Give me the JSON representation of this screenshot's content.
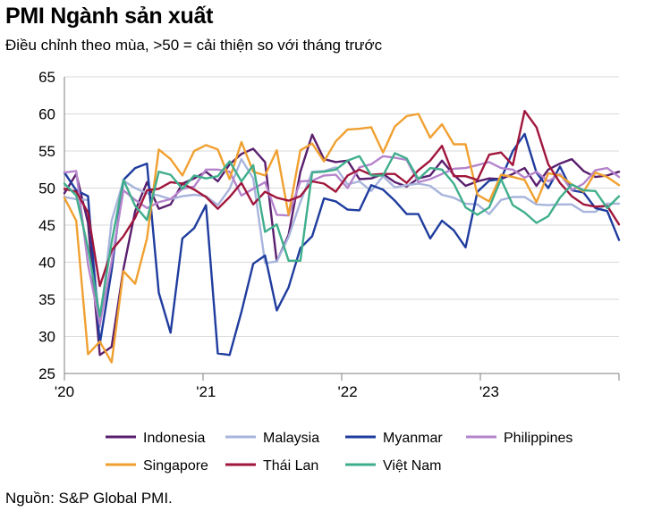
{
  "title": "PMI Ngành sản xuất",
  "subtitle": "Điều chỉnh theo mùa, >50 = cải thiện so với tháng trước",
  "source": "Nguồn: S&P Global PMI.",
  "chart_data": {
    "type": "line",
    "title": "PMI Ngành sản xuất",
    "subtitle": "Điều chỉnh theo mùa, >50 = cải thiện so với tháng trước",
    "xlabel": "",
    "ylabel": "",
    "x_start": "2020-01",
    "x_end": "2023-12",
    "frequency": "monthly",
    "x_tick_labels": [
      "'20",
      "'21",
      "'22",
      "'23"
    ],
    "ylim": [
      25,
      65
    ],
    "y_ticks": [
      25,
      30,
      35,
      40,
      45,
      50,
      55,
      60,
      65
    ],
    "grid": true,
    "legend_position": "bottom",
    "series": [
      {
        "name": "Indonesia",
        "color": "#5a1f6e",
        "values": [
          49.3,
          51.9,
          45.3,
          27.5,
          28.6,
          39.1,
          46.9,
          50.8,
          47.2,
          47.8,
          50.6,
          51.3,
          52.2,
          50.9,
          53.2,
          54.6,
          55.3,
          53.5,
          40.1,
          43.7,
          52.2,
          57.2,
          53.9,
          53.5,
          53.7,
          51.2,
          51.3,
          51.9,
          50.8,
          50.2,
          51.3,
          51.7,
          53.7,
          51.8,
          50.3,
          50.9,
          51.3,
          51.2,
          51.9,
          52.7,
          50.3,
          52.5,
          53.3,
          53.9,
          52.3,
          51.5,
          51.7,
          52.2
        ]
      },
      {
        "name": "Malaysia",
        "color": "#a8b4dc",
        "values": [
          48.8,
          48.5,
          48.4,
          31.3,
          45.6,
          51.0,
          50.0,
          49.3,
          49.0,
          48.5,
          48.9,
          49.1,
          48.9,
          47.7,
          49.9,
          53.9,
          51.3,
          39.9,
          40.1,
          43.4,
          48.1,
          52.2,
          52.3,
          52.8,
          50.5,
          50.9,
          49.6,
          51.6,
          50.1,
          50.4,
          50.6,
          50.3,
          49.1,
          48.7,
          47.9,
          47.8,
          46.5,
          48.4,
          48.8,
          48.8,
          47.8,
          47.7,
          47.8,
          47.8,
          46.8,
          46.8,
          47.9,
          47.9
        ]
      },
      {
        "name": "Myanmar",
        "color": "#1f3c9e",
        "values": [
          52.1,
          49.7,
          48.9,
          29.0,
          38.9,
          51.1,
          52.7,
          53.3,
          35.9,
          30.5,
          43.2,
          44.6,
          47.7,
          27.7,
          27.5,
          33.3,
          39.8,
          40.9,
          33.5,
          36.6,
          41.9,
          43.5,
          48.6,
          48.2,
          47.1,
          47.0,
          50.4,
          49.8,
          48.3,
          46.5,
          46.5,
          43.2,
          45.6,
          44.3,
          42.0,
          49.5,
          51.0,
          51.2,
          55.0,
          57.3,
          52.1,
          50.0,
          52.9,
          49.7,
          49.4,
          47.3,
          46.9,
          43.0
        ]
      },
      {
        "name": "Philippines",
        "color": "#b584cc",
        "values": [
          52.1,
          52.3,
          39.7,
          31.6,
          40.1,
          49.7,
          48.4,
          47.3,
          48.1,
          48.5,
          49.9,
          50.2,
          52.5,
          52.5,
          52.2,
          49.0,
          49.9,
          50.8,
          46.4,
          46.3,
          50.9,
          51.0,
          51.7,
          51.8,
          50.0,
          52.8,
          53.2,
          54.3,
          54.1,
          53.8,
          50.8,
          51.2,
          51.9,
          52.6,
          52.7,
          53.1,
          53.5,
          52.7,
          52.5,
          51.4,
          52.2,
          50.9,
          51.9,
          49.7,
          50.6,
          52.4,
          52.7,
          51.5
        ]
      },
      {
        "name": "Singapore",
        "color": "#f0a030",
        "values": [
          48.7,
          45.6,
          27.6,
          29.3,
          26.5,
          38.8,
          37.1,
          43.2,
          55.2,
          53.9,
          51.7,
          55.0,
          55.8,
          55.2,
          51.2,
          56.2,
          52.2,
          51.7,
          55.1,
          46.4,
          55.1,
          56.0,
          53.6,
          56.3,
          57.9,
          58.0,
          58.2,
          54.8,
          58.3,
          59.7,
          60.0,
          56.8,
          58.6,
          55.9,
          55.9,
          49.1,
          48.2,
          51.8,
          51.5,
          51.1,
          48.1,
          52.0,
          51.7,
          50.5,
          49.5,
          52.1,
          51.5,
          50.4
        ]
      },
      {
        "name": "Thái Lan",
        "color": "#a0163c",
        "values": [
          49.9,
          49.5,
          46.7,
          36.8,
          41.6,
          43.5,
          46.0,
          49.7,
          49.9,
          50.8,
          50.6,
          49.8,
          48.8,
          47.2,
          48.8,
          50.7,
          47.8,
          49.5,
          48.7,
          48.3,
          48.9,
          50.9,
          50.6,
          49.5,
          51.7,
          52.5,
          51.8,
          51.9,
          51.9,
          50.7,
          52.4,
          53.7,
          55.7,
          51.6,
          51.6,
          51.1,
          54.5,
          54.8,
          53.1,
          60.4,
          58.2,
          53.2,
          50.7,
          48.9,
          47.8,
          47.5,
          47.6,
          45.1
        ]
      },
      {
        "name": "Việt Nam",
        "color": "#3fae8c",
        "values": [
          50.6,
          49.0,
          41.9,
          32.7,
          42.7,
          51.1,
          47.6,
          45.7,
          52.2,
          51.8,
          49.9,
          51.7,
          51.3,
          51.6,
          53.6,
          50.9,
          53.1,
          44.1,
          45.1,
          40.2,
          40.2,
          52.1,
          52.2,
          52.5,
          53.7,
          54.3,
          51.7,
          51.7,
          54.7,
          54.0,
          51.2,
          52.7,
          52.5,
          50.6,
          47.4,
          46.4,
          47.4,
          51.2,
          47.7,
          46.7,
          45.3,
          46.2,
          48.7,
          50.5,
          49.7,
          49.6,
          47.3,
          48.9
        ]
      }
    ]
  }
}
